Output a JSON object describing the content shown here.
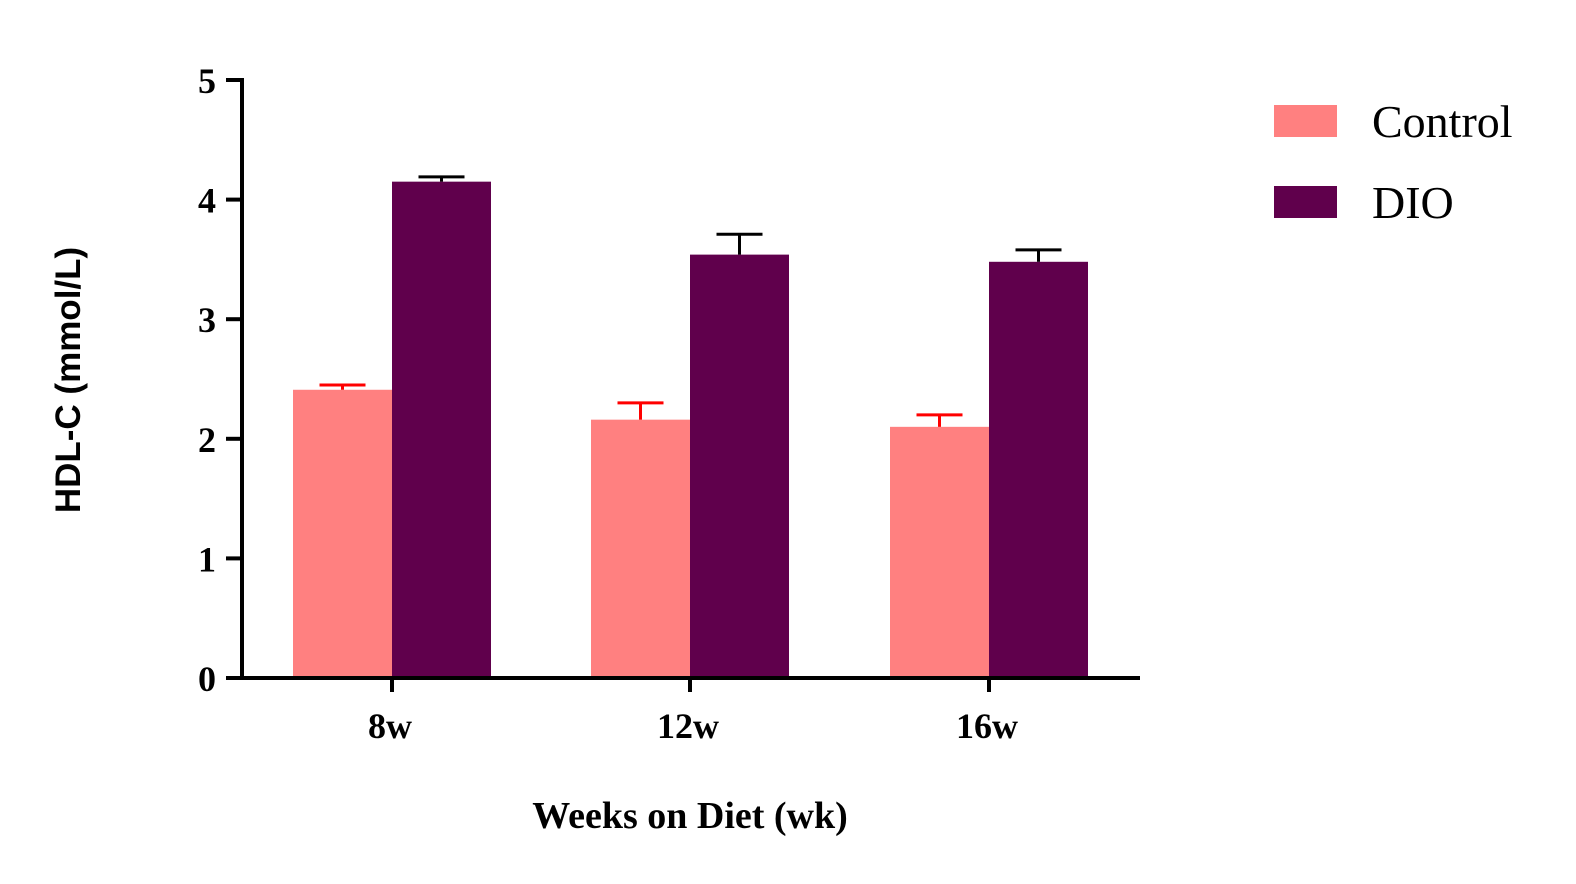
{
  "chart_data": {
    "type": "bar",
    "categories": [
      "8w",
      "12w",
      "16w"
    ],
    "series": [
      {
        "name": "Control",
        "color": "#ff8080",
        "error_color": "#ff0000",
        "values": [
          2.41,
          2.16,
          2.1
        ],
        "errors": [
          0.04,
          0.14,
          0.1
        ]
      },
      {
        "name": "DIO",
        "color": "#60004c",
        "error_color": "#000000",
        "values": [
          4.15,
          3.54,
          3.48
        ],
        "errors": [
          0.04,
          0.17,
          0.1
        ]
      }
    ],
    "xlabel": "Weeks on Diet (wk)",
    "ylabel": "HDL-C (mmol/L)",
    "ylim": [
      0,
      5
    ],
    "yticks": [
      "0",
      "1",
      "2",
      "3",
      "4",
      "5"
    ],
    "grid": false,
    "legend_position": "top-right"
  }
}
